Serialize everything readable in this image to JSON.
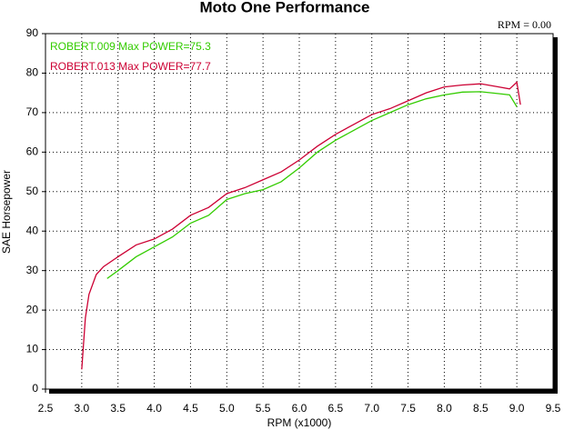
{
  "chart_data": {
    "type": "line",
    "title": "Moto One Performance",
    "annotation": "RPM = 0.00",
    "x_label": "RPM (x1000)",
    "y_label": "SAE Horsepower",
    "xlim": [
      2.5,
      9.5
    ],
    "ylim": [
      0,
      90
    ],
    "xticks": [
      2.5,
      {
        "value": 3,
        "label": "3.0"
      },
      3.5,
      {
        "value": 4,
        "label": "4.0"
      },
      4.5,
      {
        "value": 5,
        "label": "5.0"
      },
      5.5,
      {
        "value": 6,
        "label": "6.0"
      },
      6.5,
      {
        "value": 7,
        "label": "7.0"
      },
      7.5,
      {
        "value": 8,
        "label": "8.0"
      },
      8.5,
      {
        "value": 9,
        "label": "9.0"
      },
      9.5
    ],
    "yticks": [
      0,
      10,
      20,
      30,
      40,
      50,
      60,
      70,
      80,
      90
    ],
    "grid": true,
    "legend": "upper left",
    "series": [
      {
        "name": "ROBERT.009  Max POWER=75.3",
        "color": "#33cc00",
        "x": [
          3.35,
          3.5,
          3.75,
          4.0,
          4.25,
          4.5,
          4.75,
          5.0,
          5.25,
          5.5,
          5.75,
          6.0,
          6.25,
          6.5,
          6.75,
          7.0,
          7.25,
          7.5,
          7.75,
          8.0,
          8.25,
          8.5,
          8.75,
          8.9,
          9.0
        ],
        "values": [
          28,
          30,
          33.5,
          36,
          38.5,
          42,
          44,
          48,
          49.5,
          50.5,
          52.5,
          56,
          60,
          63,
          65.5,
          68,
          70,
          72,
          73.5,
          74.5,
          75.2,
          75.3,
          74.8,
          74.5,
          71.5
        ]
      },
      {
        "name": "ROBERT.013  Max POWER=77.7",
        "color": "#cc0033",
        "x": [
          3.0,
          3.05,
          3.1,
          3.2,
          3.3,
          3.5,
          3.75,
          4.0,
          4.25,
          4.5,
          4.75,
          5.0,
          5.25,
          5.5,
          5.75,
          6.0,
          6.25,
          6.5,
          6.75,
          7.0,
          7.25,
          7.5,
          7.75,
          8.0,
          8.25,
          8.5,
          8.75,
          8.9,
          9.0,
          9.05
        ],
        "values": [
          5,
          18,
          24,
          29,
          31,
          33.5,
          36.5,
          38,
          40.5,
          44,
          46,
          49.5,
          51,
          53,
          55,
          58,
          61.5,
          64.5,
          67,
          69.5,
          71,
          73,
          75,
          76.5,
          77,
          77.3,
          76.5,
          76,
          77.7,
          72
        ]
      }
    ]
  }
}
